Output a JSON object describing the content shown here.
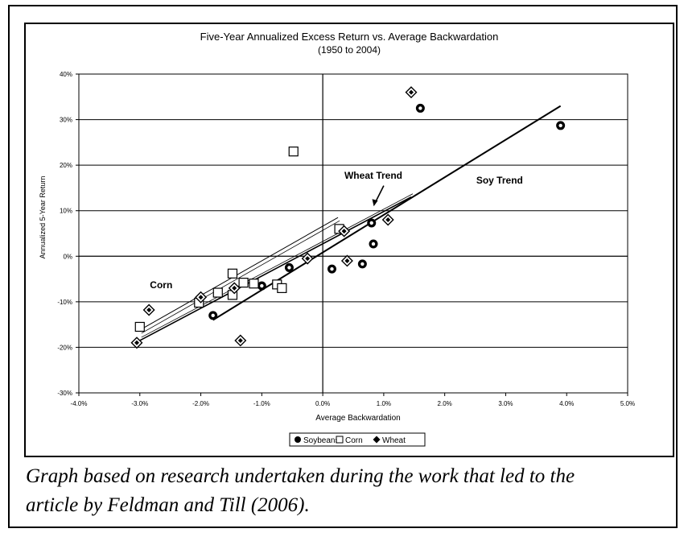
{
  "chart_data": {
    "type": "scatter",
    "title": "Five-Year Annualized Excess Return vs. Average Backwardation",
    "subtitle": "(1950 to 2004)",
    "xlabel": "Average  Backwardation",
    "ylabel": "Annualized 5-Year Return",
    "xlim": [
      -0.04,
      0.05
    ],
    "ylim": [
      -0.3,
      0.4
    ],
    "xticks": [
      -0.04,
      -0.03,
      -0.02,
      -0.01,
      0.0,
      0.01,
      0.02,
      0.03,
      0.04,
      0.05
    ],
    "xtick_labels": [
      "-4.0%",
      "-3.0%",
      "-2.0%",
      "-1.0%",
      "0.0%",
      "1.0%",
      "2.0%",
      "3.0%",
      "4.0%",
      "5.0%"
    ],
    "yticks": [
      -0.3,
      -0.2,
      -0.1,
      0.0,
      0.1,
      0.2,
      0.3,
      0.4
    ],
    "ytick_labels": [
      "-30%",
      "-20%",
      "-10%",
      "0%",
      "10%",
      "20%",
      "30%",
      "40%"
    ],
    "grid": "horizontal",
    "legend": "bottom",
    "series": [
      {
        "name": "Soybeans",
        "marker": "circle",
        "points": [
          [
            -0.018,
            -0.13
          ],
          [
            -0.01,
            -0.065
          ],
          [
            -0.0055,
            -0.025
          ],
          [
            0.0015,
            -0.028
          ],
          [
            0.0065,
            -0.017
          ],
          [
            0.008,
            0.073
          ],
          [
            0.0083,
            0.027
          ],
          [
            0.016,
            0.325
          ],
          [
            0.039,
            0.287
          ]
        ]
      },
      {
        "name": "Corn",
        "marker": "square",
        "points": [
          [
            -0.03,
            -0.155
          ],
          [
            -0.0203,
            -0.102
          ],
          [
            -0.0172,
            -0.08
          ],
          [
            -0.0148,
            -0.085
          ],
          [
            -0.0148,
            -0.038
          ],
          [
            -0.013,
            -0.058
          ],
          [
            -0.0113,
            -0.06
          ],
          [
            -0.0075,
            -0.062
          ],
          [
            -0.0067,
            -0.07
          ],
          [
            -0.0048,
            0.23
          ],
          [
            0.0027,
            0.06
          ]
        ]
      },
      {
        "name": "Wheat",
        "marker": "diamond",
        "points": [
          [
            -0.0305,
            -0.19
          ],
          [
            -0.0285,
            -0.118
          ],
          [
            -0.02,
            -0.09
          ],
          [
            -0.0145,
            -0.07
          ],
          [
            -0.0135,
            -0.185
          ],
          [
            -0.0025,
            -0.005
          ],
          [
            0.004,
            -0.01
          ],
          [
            0.0035,
            0.055
          ],
          [
            0.0107,
            0.08
          ],
          [
            0.0145,
            0.36
          ]
        ]
      }
    ],
    "trend_lines": [
      {
        "name": "Soy Trend",
        "from": [
          -0.018,
          -0.14
        ],
        "to": [
          0.039,
          0.33
        ]
      },
      {
        "name": "Wheat Trend",
        "from": [
          -0.03,
          -0.185
        ],
        "to": [
          0.0145,
          0.13
        ]
      },
      {
        "name": "Corn",
        "from": [
          -0.03,
          -0.162
        ],
        "to": [
          0.0025,
          0.085
        ]
      }
    ],
    "annotations": [
      {
        "text": "Wheat Trend",
        "x": 0.0083,
        "y": 0.17
      },
      {
        "text": "Soy Trend",
        "x": 0.029,
        "y": 0.16
      },
      {
        "text": "Corn",
        "x": -0.0265,
        "y": -0.07
      }
    ],
    "legend_entries": [
      "Soybeans",
      "Corn",
      "Wheat"
    ]
  },
  "caption": {
    "line1": "Graph based on research undertaken during the work that led to the",
    "line2": "article by Feldman and Till (2006)."
  }
}
